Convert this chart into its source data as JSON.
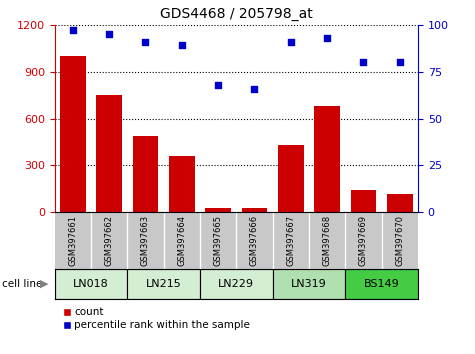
{
  "title": "GDS4468 / 205798_at",
  "samples": [
    "GSM397661",
    "GSM397662",
    "GSM397663",
    "GSM397664",
    "GSM397665",
    "GSM397666",
    "GSM397667",
    "GSM397668",
    "GSM397669",
    "GSM397670"
  ],
  "counts": [
    1000,
    750,
    490,
    360,
    30,
    25,
    430,
    680,
    145,
    120
  ],
  "percentile_ranks": [
    97,
    95,
    91,
    89,
    68,
    66,
    91,
    93,
    80,
    80
  ],
  "cell_lines": [
    {
      "label": "LN018",
      "start": 0,
      "end": 2,
      "color": "#d4eed4"
    },
    {
      "label": "LN215",
      "start": 2,
      "end": 4,
      "color": "#d4eed4"
    },
    {
      "label": "LN229",
      "start": 4,
      "end": 6,
      "color": "#d4eed4"
    },
    {
      "label": "LN319",
      "start": 6,
      "end": 8,
      "color": "#b0e0b0"
    },
    {
      "label": "BS149",
      "start": 8,
      "end": 10,
      "color": "#44cc44"
    }
  ],
  "left_ylim": [
    0,
    1200
  ],
  "left_yticks": [
    0,
    300,
    600,
    900,
    1200
  ],
  "right_ylim": [
    0,
    100
  ],
  "right_yticks": [
    0,
    25,
    50,
    75,
    100
  ],
  "bar_color": "#cc0000",
  "dot_color": "#0000cc",
  "tick_label_color_left": "#cc0000",
  "tick_label_color_right": "#0000cc",
  "sample_bg_color": "#c8c8c8",
  "cell_line_label": "cell line"
}
